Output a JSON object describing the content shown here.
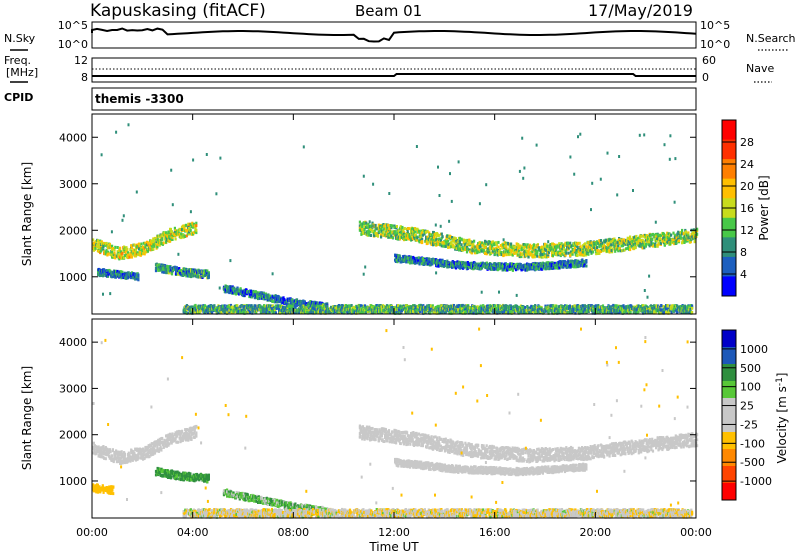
{
  "header": {
    "station": "Kapuskasing (fitACF)",
    "beam": "Beam 01",
    "date": "17/May/2019"
  },
  "side_labels": {
    "nsky": "N.Sky",
    "freq_top": "Freq.",
    "freq_unit": "[MHz]",
    "cpid": "CPID",
    "nsearch": "N.Search",
    "nave": "Nave"
  },
  "nsky_panel": {
    "left_ticks": [
      "10^5",
      "10^0"
    ],
    "right_ticks": [
      "10^5",
      "10^0"
    ]
  },
  "freq_panel": {
    "left_ticks": [
      "12",
      "8"
    ],
    "right_ticks": [
      "60",
      "0"
    ]
  },
  "cpid_text": "themis -3300",
  "colors": {
    "power": [
      "#0000ff",
      "#1c5fbf",
      "#2f8f7a",
      "#48c848",
      "#c8dc1c",
      "#ffbf00",
      "#ff7f00",
      "#ff3000",
      "#ff0000"
    ],
    "velocity": [
      "#ff0000",
      "#ff4400",
      "#ff8800",
      "#ffc000",
      "#c8c8c8",
      "#c8c8c8",
      "#58c838",
      "#2f8f3f",
      "#1c58b8",
      "#0000c8"
    ],
    "ground": "#c8c8c8"
  },
  "chart_data": [
    {
      "type": "heatmap",
      "panel": "power",
      "ylabel": "Slant Range [km]",
      "yticks": [
        "4000",
        "3000",
        "2000",
        "1000"
      ],
      "ylim": [
        200,
        4500
      ],
      "xlim": [
        0,
        24
      ],
      "colorbar_label": "Power [dB]",
      "colorbar_ticks": [
        "28",
        "24",
        "20",
        "16",
        "12",
        "8",
        "4"
      ],
      "colorbar_range": [
        0,
        32
      ],
      "bands": [
        {
          "t0": 0.0,
          "t1": 4.1,
          "r": [
            1700,
            1500,
            1600,
            1900,
            2050
          ],
          "w": 260,
          "val": 16
        },
        {
          "t0": 0.2,
          "t1": 1.8,
          "r": [
            1100,
            1000
          ],
          "w": 140,
          "val": 6
        },
        {
          "t0": 2.5,
          "t1": 4.6,
          "r": [
            1200,
            1100,
            1050
          ],
          "w": 160,
          "val": 8
        },
        {
          "t0": 10.6,
          "t1": 24.0,
          "r": [
            2050,
            1900,
            1650,
            1550,
            1600,
            1750,
            1900
          ],
          "w": 280,
          "val": 14
        },
        {
          "t0": 12.0,
          "t1": 19.6,
          "r": [
            1400,
            1250,
            1200,
            1300
          ],
          "w": 140,
          "val": 7
        },
        {
          "t0": 5.2,
          "t1": 9.3,
          "r": [
            750,
            600,
            450,
            350
          ],
          "w": 140,
          "val": 6
        },
        {
          "t0": 3.6,
          "t1": 23.8,
          "r": [
            300,
            300
          ],
          "w": 170,
          "val": 10
        }
      ]
    },
    {
      "type": "heatmap",
      "panel": "velocity",
      "ylabel": "Slant Range [km]",
      "yticks": [
        "4000",
        "3000",
        "2000",
        "1000"
      ],
      "ylim": [
        200,
        4500
      ],
      "xlim": [
        0,
        24
      ],
      "xlabel": "Time UT",
      "xticks": [
        "00:00",
        "04:00",
        "08:00",
        "12:00",
        "16:00",
        "20:00",
        "00:00"
      ],
      "colorbar_label": "Velocity [m s^-1]",
      "colorbar_ticks": [
        "1000",
        "500",
        "100",
        "25",
        "-25",
        "-100",
        "-500",
        "-1000"
      ],
      "bands": [
        {
          "t0": 0.0,
          "t1": 4.1,
          "r": [
            1700,
            1500,
            1600,
            1900,
            2050
          ],
          "w": 260,
          "val": "ground"
        },
        {
          "t0": 0.0,
          "t1": 0.8,
          "r": [
            850,
            800
          ],
          "w": 160,
          "val": -300
        },
        {
          "t0": 2.5,
          "t1": 4.6,
          "r": [
            1200,
            1100,
            1050
          ],
          "w": 160,
          "val": 150
        },
        {
          "t0": 10.6,
          "t1": 24.0,
          "r": [
            2050,
            1900,
            1650,
            1550,
            1600,
            1750,
            1900
          ],
          "w": 280,
          "val": "ground"
        },
        {
          "t0": 12.0,
          "t1": 19.6,
          "r": [
            1400,
            1250,
            1200,
            1300
          ],
          "w": 140,
          "val": "ground"
        },
        {
          "t0": 5.2,
          "t1": 9.3,
          "r": [
            750,
            600,
            450,
            350
          ],
          "w": 140,
          "val": 80
        },
        {
          "t0": 3.6,
          "t1": 23.8,
          "r": [
            300,
            300
          ],
          "w": 170,
          "val": -60
        }
      ]
    }
  ]
}
